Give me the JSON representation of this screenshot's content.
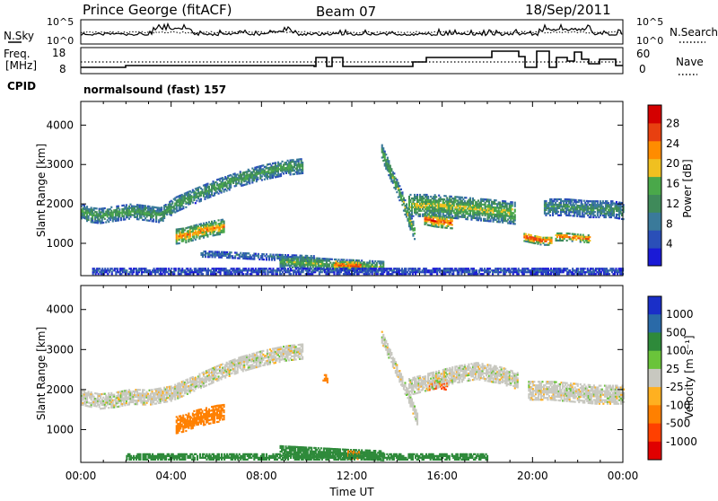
{
  "header": {
    "station": "Prince George (fitACF)",
    "beam": "Beam 07",
    "date": "18/Sep/2011"
  },
  "noise_panel": {
    "left_label": "N.Sky",
    "left_ticks": [
      "10^5",
      "10^0"
    ],
    "right_label": "N.Search",
    "right_ticks": [
      "10^5",
      "10^0"
    ]
  },
  "freq_panel": {
    "left_label_line1": "Freq.",
    "left_label_line2": "[MHz]",
    "left_ticks": [
      "18",
      "8"
    ],
    "right_label": "Nave",
    "right_ticks": [
      "60",
      "0"
    ]
  },
  "cpid": {
    "label": "CPID",
    "value": "normalsound (fast) 157"
  },
  "colors": {
    "power": [
      "#1a1ad6",
      "#2a4fb8",
      "#3a7a9a",
      "#3f8a5a",
      "#4aa84a",
      "#f0c020",
      "#ff8c00",
      "#e84010",
      "#d40000"
    ],
    "velocity": [
      "#1a2fc8",
      "#2a6aa8",
      "#2e8a3a",
      "#6ac43a",
      "#c8c8c0",
      "#ffb020",
      "#ff8000",
      "#ff4000",
      "#e00000"
    ]
  },
  "chart_data": [
    {
      "type": "heatmap",
      "name": "power",
      "ylabel": "Slant Range [km]",
      "yticks": [
        1000,
        2000,
        3000,
        4000
      ],
      "ylim": [
        180,
        4600
      ],
      "xlim": [
        0,
        24
      ],
      "colorbar": {
        "label": "Power [dB]",
        "ticks": [
          "4",
          "8",
          "12",
          "16",
          "20",
          "24",
          "28"
        ],
        "range": [
          0,
          30
        ]
      },
      "bands": [
        {
          "x": [
            0.0,
            0.3,
            0.8,
            1.5,
            2.2,
            2.8,
            3.5,
            4.2,
            5.0,
            6.0,
            7.0,
            8.0,
            9.0,
            9.8
          ],
          "y": [
            1800,
            1720,
            1680,
            1740,
            1800,
            1760,
            1700,
            1980,
            2180,
            2420,
            2620,
            2780,
            2900,
            2950
          ],
          "width": 380,
          "value": 14
        },
        {
          "x": [
            4.2,
            4.6,
            5.0,
            5.5,
            6.0,
            6.3
          ],
          "y": [
            1150,
            1180,
            1250,
            1320,
            1380,
            1400
          ],
          "width": 360,
          "value": 22
        },
        {
          "x": [
            5.3,
            6.3,
            7.3,
            8.3,
            9.3,
            10.3
          ],
          "y": [
            720,
            700,
            670,
            640,
            620,
            600
          ],
          "width": 160,
          "value": 9
        },
        {
          "x": [
            8.8,
            9.6,
            10.4,
            11.2,
            12.0,
            12.8,
            13.4
          ],
          "y": [
            520,
            500,
            470,
            440,
            420,
            400,
            380
          ],
          "width": 280,
          "value": 16
        },
        {
          "x": [
            11.2,
            11.6,
            12.0,
            12.4
          ],
          "y": [
            450,
            430,
            420,
            410
          ],
          "width": 220,
          "value": 26
        },
        {
          "x": [
            13.3,
            13.6,
            13.9,
            14.2,
            14.5,
            14.8
          ],
          "y": [
            3300,
            2900,
            2500,
            2100,
            1600,
            1200
          ],
          "width": 380,
          "value": 16
        },
        {
          "x": [
            14.5,
            15.5,
            16.5,
            17.5,
            18.5,
            19.2
          ],
          "y": [
            1950,
            1950,
            1900,
            1850,
            1800,
            1750
          ],
          "width": 560,
          "value": 17
        },
        {
          "x": [
            15.2,
            15.6,
            16.0,
            16.4
          ],
          "y": [
            1600,
            1550,
            1520,
            1500
          ],
          "width": 280,
          "value": 26
        },
        {
          "x": [
            19.6,
            20.0,
            20.4,
            20.8
          ],
          "y": [
            1150,
            1100,
            1050,
            1050
          ],
          "width": 220,
          "value": 26
        },
        {
          "x": [
            21.0,
            21.5,
            22.0,
            22.5
          ],
          "y": [
            1150,
            1150,
            1120,
            1100
          ],
          "width": 200,
          "value": 24
        },
        {
          "x": [
            20.5,
            21.5,
            22.5,
            23.5,
            24.0
          ],
          "y": [
            1900,
            1900,
            1850,
            1850,
            1800
          ],
          "width": 420,
          "value": 12
        },
        {
          "x": [
            0.5,
            2.0,
            4.0,
            6.0,
            8.0,
            10.0,
            12.0,
            14.0,
            16.0,
            18.0,
            20.0,
            22.0,
            24.0
          ],
          "y": [
            280,
            280,
            280,
            280,
            280,
            280,
            280,
            280,
            280,
            280,
            280,
            280,
            280
          ],
          "width": 160,
          "value": 6
        }
      ]
    },
    {
      "type": "heatmap",
      "name": "velocity",
      "ylabel": "Slant Range [km]",
      "yticks": [
        1000,
        2000,
        3000,
        4000
      ],
      "ylim": [
        180,
        4600
      ],
      "xlim": [
        0,
        24
      ],
      "xticks": [
        "00:00",
        "04:00",
        "08:00",
        "12:00",
        "16:00",
        "20:00",
        "00:00"
      ],
      "xlabel": "Time UT",
      "colorbar": {
        "label": "Velocity [m s⁻¹]",
        "ticks": [
          "1000",
          "500",
          "100",
          "25",
          "-25",
          "-100",
          "-500",
          "-1000"
        ]
      },
      "bands": [
        {
          "x": [
            0.0,
            0.8,
            1.5,
            2.2,
            3.0,
            4.0,
            5.0,
            6.0,
            7.0,
            8.0,
            9.0,
            9.8
          ],
          "y": [
            1800,
            1700,
            1740,
            1820,
            1800,
            1900,
            2150,
            2400,
            2620,
            2780,
            2900,
            2950
          ],
          "width": 400,
          "value": 0
        },
        {
          "x": [
            4.2,
            4.6,
            5.0,
            5.5,
            6.0,
            6.3
          ],
          "y": [
            1100,
            1150,
            1250,
            1320,
            1380,
            1400
          ],
          "width": 420,
          "value": -200
        },
        {
          "x": [
            10.7,
            10.9
          ],
          "y": [
            2250,
            2250
          ],
          "width": 180,
          "value": -250
        },
        {
          "x": [
            13.3,
            13.7,
            14.1,
            14.5,
            14.9
          ],
          "y": [
            3300,
            2800,
            2300,
            1800,
            1200
          ],
          "width": 300,
          "value": 0
        },
        {
          "x": [
            15.4,
            15.8,
            16.2
          ],
          "y": [
            2100,
            2150,
            2100
          ],
          "width": 260,
          "value": -350
        },
        {
          "x": [
            14.5,
            15.5,
            16.5,
            17.5,
            18.5,
            19.3
          ],
          "y": [
            2050,
            2200,
            2350,
            2450,
            2350,
            2200
          ],
          "width": 420,
          "value": 0
        },
        {
          "x": [
            19.8,
            20.8,
            21.8,
            22.8,
            23.6,
            24.0
          ],
          "y": [
            1950,
            1950,
            1900,
            1850,
            1850,
            1850
          ],
          "width": 450,
          "value": 0
        },
        {
          "x": [
            8.8,
            9.8,
            10.8,
            11.8,
            12.8,
            13.4
          ],
          "y": [
            470,
            440,
            410,
            380,
            360,
            340
          ],
          "width": 260,
          "value": 150
        },
        {
          "x": [
            11.8,
            12.3
          ],
          "y": [
            350,
            330
          ],
          "width": 180,
          "value": -200
        },
        {
          "x": [
            2.0,
            4.0,
            6.0,
            8.0,
            10.0,
            12.0,
            14.0,
            16.0,
            18.0
          ],
          "y": [
            300,
            300,
            300,
            300,
            300,
            300,
            300,
            300,
            300
          ],
          "width": 140,
          "value": 150
        }
      ]
    }
  ]
}
